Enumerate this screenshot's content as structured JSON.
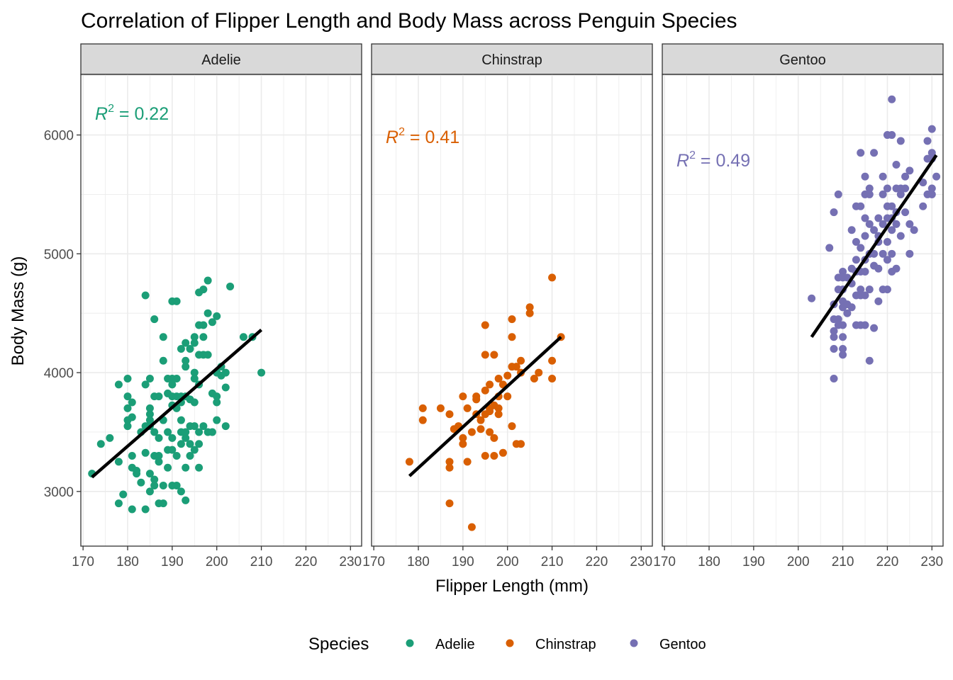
{
  "chart_data": {
    "type": "scatter",
    "title": "Correlation of Flipper Length and Body Mass across Penguin Species",
    "xlabel": "Flipper Length (mm)",
    "ylabel": "Body Mass (g)",
    "xlim": [
      169.5,
      232.5
    ],
    "ylim": [
      2540,
      6510
    ],
    "x_ticks": [
      170,
      180,
      190,
      200,
      210,
      220,
      230
    ],
    "y_ticks": [
      3000,
      4000,
      5000,
      6000
    ],
    "grid": true,
    "legend": {
      "title": "Species",
      "position": "bottom"
    },
    "facets": [
      {
        "name": "Adelie",
        "color": "#1B9E77",
        "r2_label": "R",
        "r2_sup": "2",
        "r2_value": " = 0.22",
        "fit": {
          "x": [
            172,
            210
          ],
          "y": [
            3120,
            4360
          ]
        },
        "points": [
          [
            172,
            3150
          ],
          [
            174,
            3400
          ],
          [
            176,
            3450
          ],
          [
            178,
            3900
          ],
          [
            178,
            3250
          ],
          [
            178,
            2900
          ],
          [
            179,
            2975
          ],
          [
            180,
            3950
          ],
          [
            180,
            3800
          ],
          [
            180,
            3700
          ],
          [
            180,
            3600
          ],
          [
            180,
            3550
          ],
          [
            181,
            3750
          ],
          [
            181,
            3625
          ],
          [
            181,
            3300
          ],
          [
            181,
            3200
          ],
          [
            181,
            2850
          ],
          [
            182,
            3175
          ],
          [
            182,
            3150
          ],
          [
            183,
            3500
          ],
          [
            183,
            3075
          ],
          [
            184,
            4650
          ],
          [
            184,
            3900
          ],
          [
            184,
            3550
          ],
          [
            184,
            3325
          ],
          [
            184,
            2850
          ],
          [
            185,
            3950
          ],
          [
            185,
            3700
          ],
          [
            185,
            3650
          ],
          [
            185,
            3600
          ],
          [
            185,
            3550
          ],
          [
            185,
            3150
          ],
          [
            185,
            3000
          ],
          [
            186,
            4450
          ],
          [
            186,
            3800
          ],
          [
            186,
            3500
          ],
          [
            186,
            3300
          ],
          [
            186,
            3100
          ],
          [
            186,
            3050
          ],
          [
            187,
            3800
          ],
          [
            187,
            3450
          ],
          [
            187,
            3300
          ],
          [
            187,
            3250
          ],
          [
            187,
            2900
          ],
          [
            188,
            4300
          ],
          [
            188,
            4100
          ],
          [
            188,
            3600
          ],
          [
            188,
            3050
          ],
          [
            188,
            2900
          ],
          [
            189,
            3950
          ],
          [
            189,
            3825
          ],
          [
            189,
            3500
          ],
          [
            189,
            3350
          ],
          [
            189,
            3200
          ],
          [
            190,
            4600
          ],
          [
            190,
            3950
          ],
          [
            190,
            3900
          ],
          [
            190,
            3800
          ],
          [
            190,
            3725
          ],
          [
            190,
            3450
          ],
          [
            190,
            3350
          ],
          [
            190,
            3050
          ],
          [
            191,
            4600
          ],
          [
            191,
            3950
          ],
          [
            191,
            3800
          ],
          [
            191,
            3700
          ],
          [
            191,
            3300
          ],
          [
            191,
            3050
          ],
          [
            192,
            4200
          ],
          [
            192,
            3800
          ],
          [
            192,
            3750
          ],
          [
            192,
            3600
          ],
          [
            192,
            3500
          ],
          [
            192,
            3400
          ],
          [
            192,
            3000
          ],
          [
            193,
            4250
          ],
          [
            193,
            4100
          ],
          [
            193,
            4050
          ],
          [
            193,
            3800
          ],
          [
            193,
            3500
          ],
          [
            193,
            3450
          ],
          [
            193,
            3200
          ],
          [
            193,
            2925
          ],
          [
            194,
            4200
          ],
          [
            194,
            3775
          ],
          [
            194,
            3550
          ],
          [
            194,
            3400
          ],
          [
            194,
            3300
          ],
          [
            195,
            4300
          ],
          [
            195,
            4250
          ],
          [
            195,
            3950
          ],
          [
            195,
            4000
          ],
          [
            195,
            3750
          ],
          [
            195,
            3550
          ],
          [
            195,
            3350
          ],
          [
            196,
            4675
          ],
          [
            196,
            4400
          ],
          [
            196,
            4150
          ],
          [
            196,
            3900
          ],
          [
            196,
            3500
          ],
          [
            196,
            3400
          ],
          [
            196,
            3200
          ],
          [
            197,
            4700
          ],
          [
            197,
            4400
          ],
          [
            197,
            4300
          ],
          [
            197,
            4150
          ],
          [
            197,
            3550
          ],
          [
            198,
            4775
          ],
          [
            198,
            4500
          ],
          [
            198,
            4150
          ],
          [
            198,
            3500
          ],
          [
            199,
            4425
          ],
          [
            199,
            3825
          ],
          [
            199,
            3500
          ],
          [
            200,
            4475
          ],
          [
            200,
            4000
          ],
          [
            200,
            3750
          ],
          [
            200,
            3600
          ],
          [
            200,
            3800
          ],
          [
            201,
            4050
          ],
          [
            201,
            3975
          ],
          [
            202,
            4000
          ],
          [
            202,
            3875
          ],
          [
            202,
            3550
          ],
          [
            203,
            4725
          ],
          [
            206,
            4300
          ],
          [
            208,
            4300
          ],
          [
            210,
            4000
          ]
        ]
      },
      {
        "name": "Chinstrap",
        "color": "#D95F02",
        "r2_label": "R",
        "r2_sup": "2",
        "r2_value": " = 0.41",
        "fit": {
          "x": [
            178,
            212
          ],
          "y": [
            3130,
            4300
          ]
        },
        "points": [
          [
            178,
            3250
          ],
          [
            181,
            3700
          ],
          [
            181,
            3600
          ],
          [
            185,
            3700
          ],
          [
            187,
            3650
          ],
          [
            187,
            3250
          ],
          [
            187,
            3200
          ],
          [
            187,
            2900
          ],
          [
            188,
            3525
          ],
          [
            189,
            3550
          ],
          [
            190,
            3450
          ],
          [
            190,
            3400
          ],
          [
            190,
            3800
          ],
          [
            191,
            3700
          ],
          [
            191,
            3250
          ],
          [
            192,
            3500
          ],
          [
            192,
            2700
          ],
          [
            193,
            3775
          ],
          [
            193,
            3800
          ],
          [
            193,
            3650
          ],
          [
            194,
            3525
          ],
          [
            194,
            3600
          ],
          [
            195,
            4400
          ],
          [
            195,
            4150
          ],
          [
            195,
            3850
          ],
          [
            195,
            3650
          ],
          [
            195,
            3300
          ],
          [
            196,
            3900
          ],
          [
            196,
            3700
          ],
          [
            196,
            3500
          ],
          [
            196,
            3675
          ],
          [
            197,
            4150
          ],
          [
            197,
            3725
          ],
          [
            197,
            3450
          ],
          [
            197,
            3300
          ],
          [
            198,
            3950
          ],
          [
            198,
            3800
          ],
          [
            198,
            3700
          ],
          [
            198,
            3650
          ],
          [
            199,
            3900
          ],
          [
            199,
            3325
          ],
          [
            200,
            3975
          ],
          [
            200,
            3800
          ],
          [
            201,
            4450
          ],
          [
            201,
            4300
          ],
          [
            201,
            4050
          ],
          [
            201,
            3550
          ],
          [
            202,
            4050
          ],
          [
            202,
            3400
          ],
          [
            203,
            4100
          ],
          [
            203,
            4000
          ],
          [
            203,
            3400
          ],
          [
            205,
            4550
          ],
          [
            205,
            4500
          ],
          [
            206,
            3950
          ],
          [
            207,
            4000
          ],
          [
            210,
            4800
          ],
          [
            210,
            4100
          ],
          [
            210,
            3950
          ],
          [
            212,
            4300
          ]
        ]
      },
      {
        "name": "Gentoo",
        "color": "#7570B3",
        "r2_label": "R",
        "r2_sup": "2",
        "r2_value": " = 0.49",
        "fit": {
          "x": [
            203,
            231
          ],
          "y": [
            4300,
            5830
          ]
        },
        "points": [
          [
            203,
            4625
          ],
          [
            207,
            5050
          ],
          [
            208,
            5350
          ],
          [
            208,
            4575
          ],
          [
            208,
            4450
          ],
          [
            208,
            4350
          ],
          [
            208,
            4300
          ],
          [
            208,
            4200
          ],
          [
            208,
            3950
          ],
          [
            209,
            5500
          ],
          [
            209,
            4800
          ],
          [
            209,
            4700
          ],
          [
            209,
            4450
          ],
          [
            209,
            4400
          ],
          [
            210,
            4850
          ],
          [
            210,
            4800
          ],
          [
            210,
            4700
          ],
          [
            210,
            4600
          ],
          [
            210,
            4550
          ],
          [
            210,
            4400
          ],
          [
            210,
            4300
          ],
          [
            210,
            4200
          ],
          [
            210,
            4150
          ],
          [
            211,
            4800
          ],
          [
            211,
            4500
          ],
          [
            211,
            4575
          ],
          [
            212,
            5200
          ],
          [
            212,
            4875
          ],
          [
            212,
            4750
          ],
          [
            212,
            4550
          ],
          [
            213,
            5400
          ],
          [
            213,
            5100
          ],
          [
            213,
            4950
          ],
          [
            213,
            4850
          ],
          [
            213,
            4650
          ],
          [
            213,
            4400
          ],
          [
            214,
            5850
          ],
          [
            214,
            5400
          ],
          [
            214,
            5050
          ],
          [
            214,
            4850
          ],
          [
            214,
            4700
          ],
          [
            214,
            4650
          ],
          [
            214,
            4400
          ],
          [
            215,
            5650
          ],
          [
            215,
            5500
          ],
          [
            215,
            5300
          ],
          [
            215,
            5150
          ],
          [
            215,
            4950
          ],
          [
            215,
            4850
          ],
          [
            215,
            4650
          ],
          [
            215,
            4400
          ],
          [
            216,
            5550
          ],
          [
            216,
            5500
          ],
          [
            216,
            5250
          ],
          [
            216,
            5000
          ],
          [
            216,
            4700
          ],
          [
            216,
            4100
          ],
          [
            217,
            5850
          ],
          [
            217,
            5200
          ],
          [
            217,
            5000
          ],
          [
            217,
            4900
          ],
          [
            217,
            4375
          ],
          [
            218,
            5300
          ],
          [
            218,
            5150
          ],
          [
            218,
            5100
          ],
          [
            218,
            4875
          ],
          [
            218,
            4600
          ],
          [
            219,
            5650
          ],
          [
            219,
            5500
          ],
          [
            219,
            5250
          ],
          [
            219,
            5000
          ],
          [
            219,
            4700
          ],
          [
            220,
            6000
          ],
          [
            220,
            5550
          ],
          [
            220,
            5400
          ],
          [
            220,
            5300
          ],
          [
            220,
            5100
          ],
          [
            220,
            4950
          ],
          [
            220,
            4700
          ],
          [
            221,
            6300
          ],
          [
            221,
            5400
          ],
          [
            221,
            5300
          ],
          [
            221,
            5200
          ],
          [
            221,
            5000
          ],
          [
            221,
            4850
          ],
          [
            221,
            6000
          ],
          [
            222,
            5750
          ],
          [
            222,
            5550
          ],
          [
            222,
            5350
          ],
          [
            222,
            5250
          ],
          [
            222,
            4875
          ],
          [
            223,
            5950
          ],
          [
            223,
            5550
          ],
          [
            223,
            5500
          ],
          [
            223,
            5150
          ],
          [
            224,
            5650
          ],
          [
            224,
            5550
          ],
          [
            224,
            5350
          ],
          [
            225,
            5700
          ],
          [
            225,
            5250
          ],
          [
            225,
            5000
          ],
          [
            226,
            5200
          ],
          [
            228,
            5600
          ],
          [
            228,
            5400
          ],
          [
            229,
            5950
          ],
          [
            229,
            5800
          ],
          [
            229,
            5500
          ],
          [
            230,
            6050
          ],
          [
            230,
            5850
          ],
          [
            230,
            5800
          ],
          [
            230,
            5550
          ],
          [
            230,
            5500
          ],
          [
            231,
            5650
          ]
        ]
      }
    ]
  }
}
